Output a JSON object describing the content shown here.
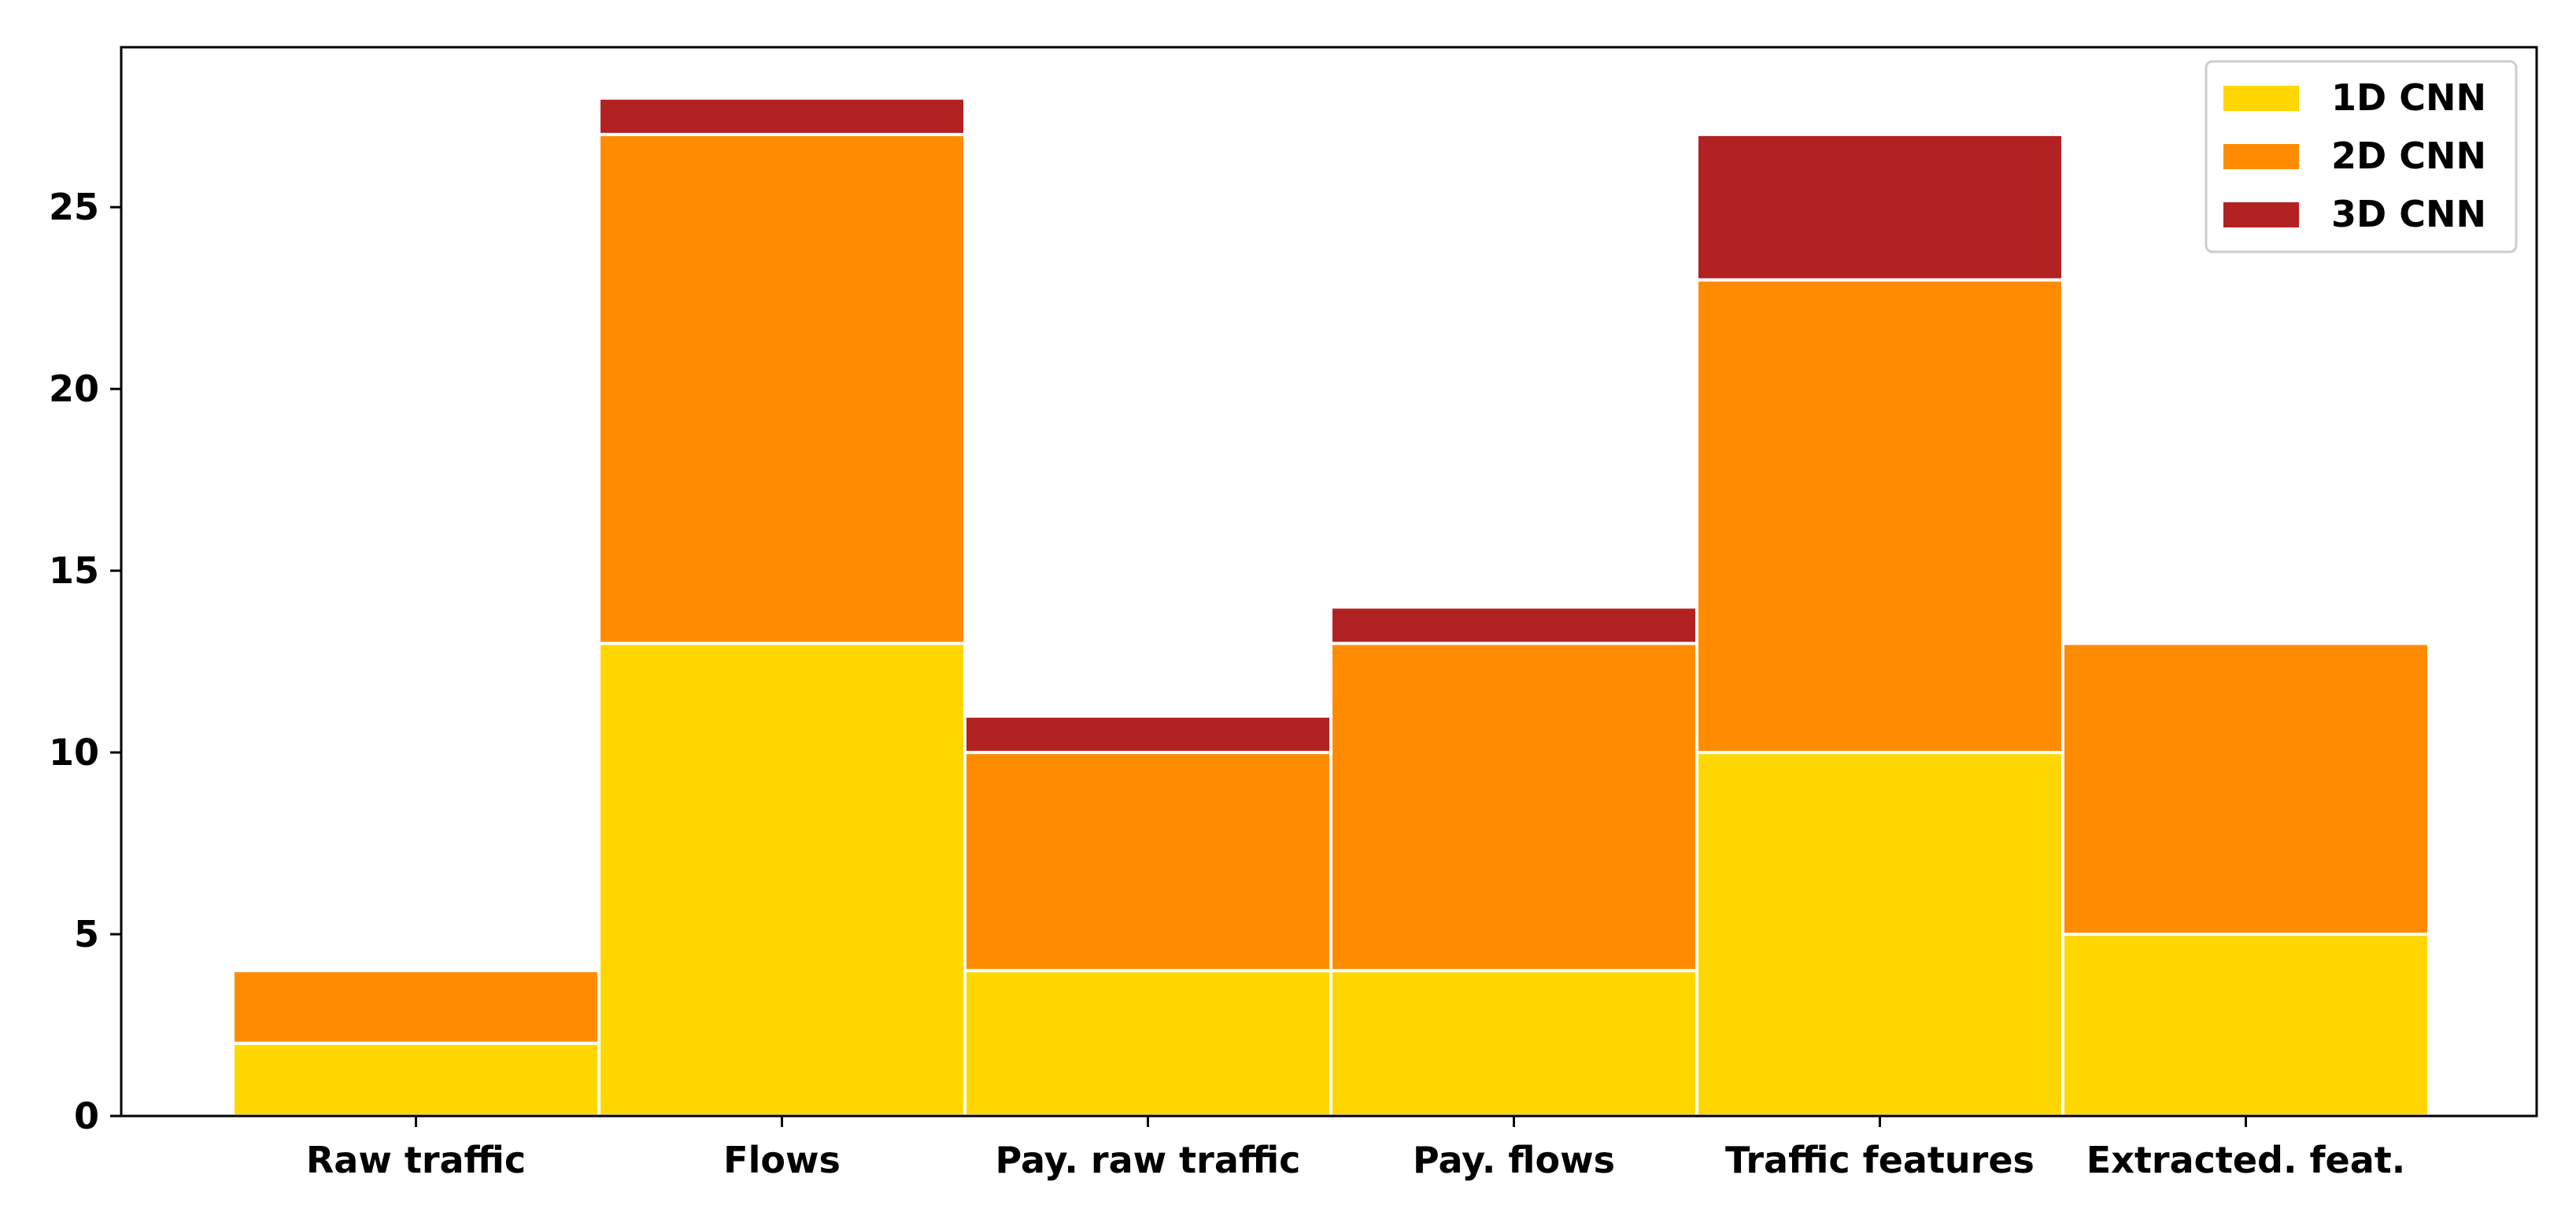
{
  "chart_data": {
    "type": "bar",
    "stacked": true,
    "categories": [
      "Raw traffic",
      "Flows",
      "Pay. raw traffic",
      "Pay. flows",
      "Traffic features",
      "Extracted. feat."
    ],
    "series": [
      {
        "name": "1D CNN",
        "values": [
          2,
          13,
          4,
          4,
          10,
          5
        ],
        "color": "#FFD700"
      },
      {
        "name": "2D CNN",
        "values": [
          2,
          14,
          6,
          9,
          13,
          8
        ],
        "color": "#FF8C00"
      },
      {
        "name": "3D CNN",
        "values": [
          0,
          1,
          1,
          1,
          4,
          0
        ],
        "color": "#B22222"
      }
    ],
    "title": "",
    "xlabel": "",
    "ylabel": "",
    "ylim": [
      0,
      29.4
    ],
    "yticks": [
      "0",
      "5",
      "10",
      "15",
      "20",
      "25"
    ],
    "grid": false,
    "legend_position": "top-right"
  }
}
